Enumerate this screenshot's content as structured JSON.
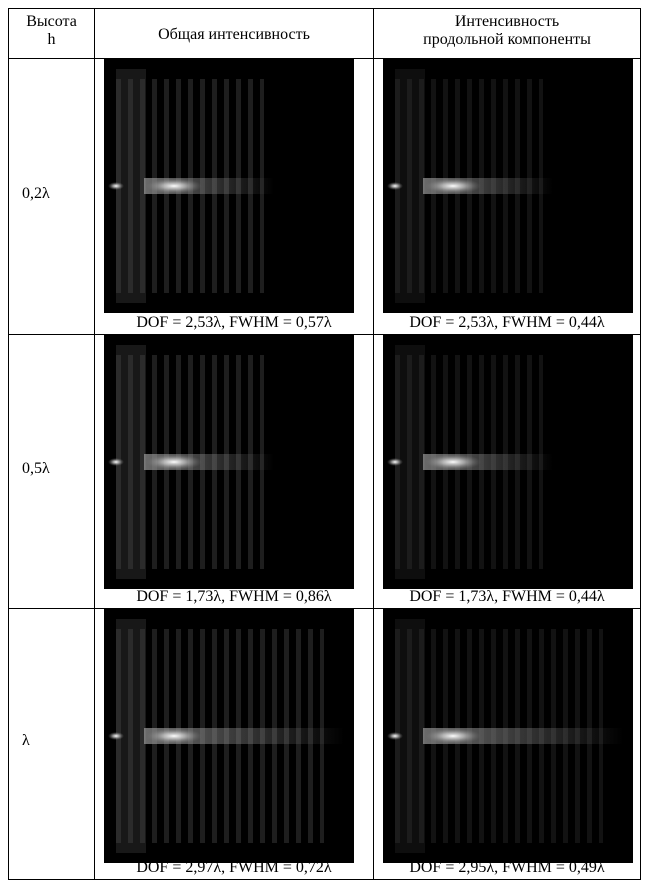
{
  "table": {
    "header": [
      [
        "Высота",
        "h"
      ],
      [
        "Общая интенсивность"
      ],
      [
        "Интенсивность",
        "продольной компоненты"
      ]
    ],
    "rows": [
      {
        "height": "0,2λ",
        "cells": [
          "DOF = 2,53λ, FWHM = 0,57λ",
          "DOF = 2,53λ, FWHM = 0,44λ"
        ]
      },
      {
        "height": "0,5λ",
        "cells": [
          "DOF = 1,73λ, FWHM = 0,86λ",
          "DOF = 1,73λ, FWHM = 0,44λ"
        ]
      },
      {
        "height": "λ",
        "cells": [
          "DOF = 2,97λ, FWHM = 0,72λ",
          "DOF = 2,95λ, FWHM = 0,49λ"
        ]
      }
    ]
  }
}
